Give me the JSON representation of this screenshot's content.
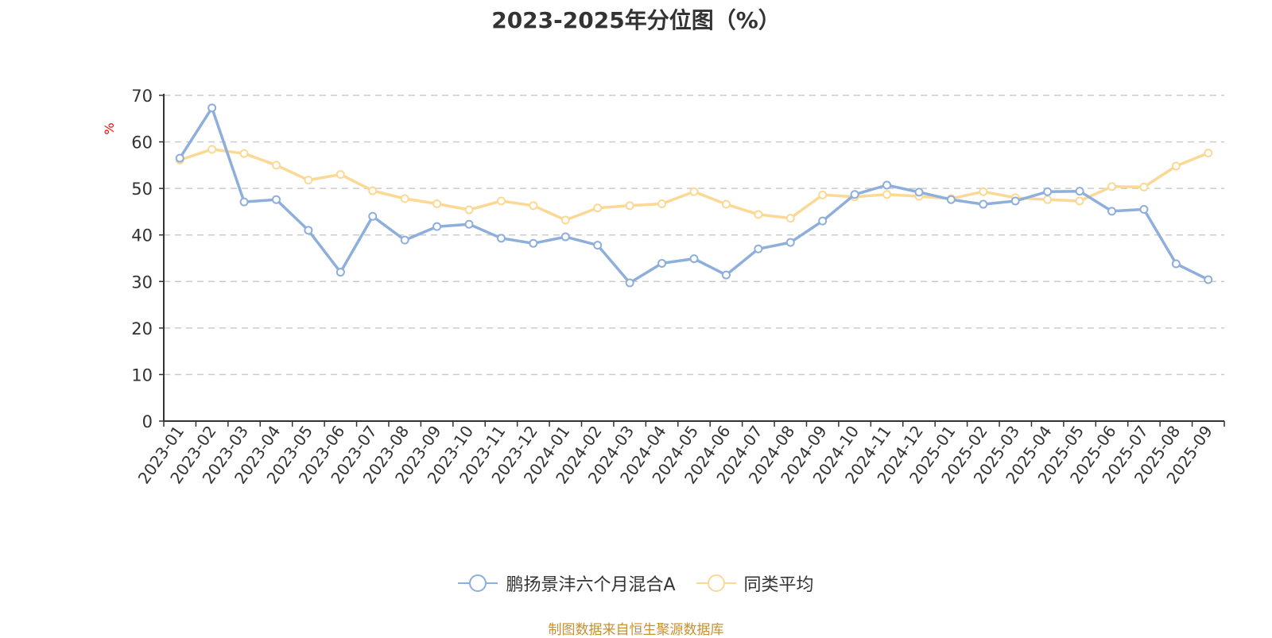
{
  "colors": {
    "series1": "#8eaedb",
    "series2": "#fbd995",
    "grid": "#cccccc",
    "axis": "#333333",
    "unit": "#ff0000",
    "source": "#c8902f"
  },
  "source_note": "制图数据来自恒生聚源数据库",
  "chart_data": {
    "type": "line",
    "title": "2023-2025年分位图（%）",
    "ylabel": "%",
    "xlabel": "",
    "ylim": [
      0,
      70
    ],
    "yticks": [
      0,
      10,
      20,
      30,
      40,
      50,
      60,
      70
    ],
    "grid": true,
    "legend_position": "bottom",
    "categories": [
      "2023-01",
      "2023-02",
      "2023-03",
      "2023-04",
      "2023-05",
      "2023-06",
      "2023-07",
      "2023-08",
      "2023-09",
      "2023-10",
      "2023-11",
      "2023-12",
      "2024-01",
      "2024-02",
      "2024-03",
      "2024-04",
      "2024-05",
      "2024-06",
      "2024-07",
      "2024-08",
      "2024-09",
      "2024-10",
      "2024-11",
      "2024-12",
      "2025-01",
      "2025-02",
      "2025-03",
      "2025-04",
      "2025-05",
      "2025-06",
      "2025-07",
      "2025-08",
      "2025-09"
    ],
    "series": [
      {
        "name": "鹏扬景沣六个月混合A",
        "color": "#8eaedb",
        "values": [
          56.5,
          67.3,
          47.1,
          47.6,
          41.0,
          32.0,
          44.0,
          38.9,
          41.8,
          42.3,
          39.3,
          38.2,
          39.6,
          37.8,
          29.7,
          33.9,
          34.9,
          31.4,
          37.0,
          38.4,
          43.0,
          48.7,
          50.7,
          49.2,
          47.6,
          46.6,
          47.3,
          49.3,
          49.4,
          45.1,
          45.5,
          33.8,
          30.4
        ]
      },
      {
        "name": "同类平均",
        "color": "#fbd995",
        "values": [
          56.1,
          58.4,
          57.5,
          55.0,
          51.8,
          53.0,
          49.5,
          47.8,
          46.7,
          45.4,
          47.3,
          46.3,
          43.2,
          45.8,
          46.3,
          46.7,
          49.3,
          46.6,
          44.4,
          43.6,
          48.6,
          48.2,
          48.7,
          48.3,
          47.8,
          49.3,
          48.0,
          47.6,
          47.3,
          50.4,
          50.3,
          54.8,
          57.6
        ]
      }
    ]
  }
}
